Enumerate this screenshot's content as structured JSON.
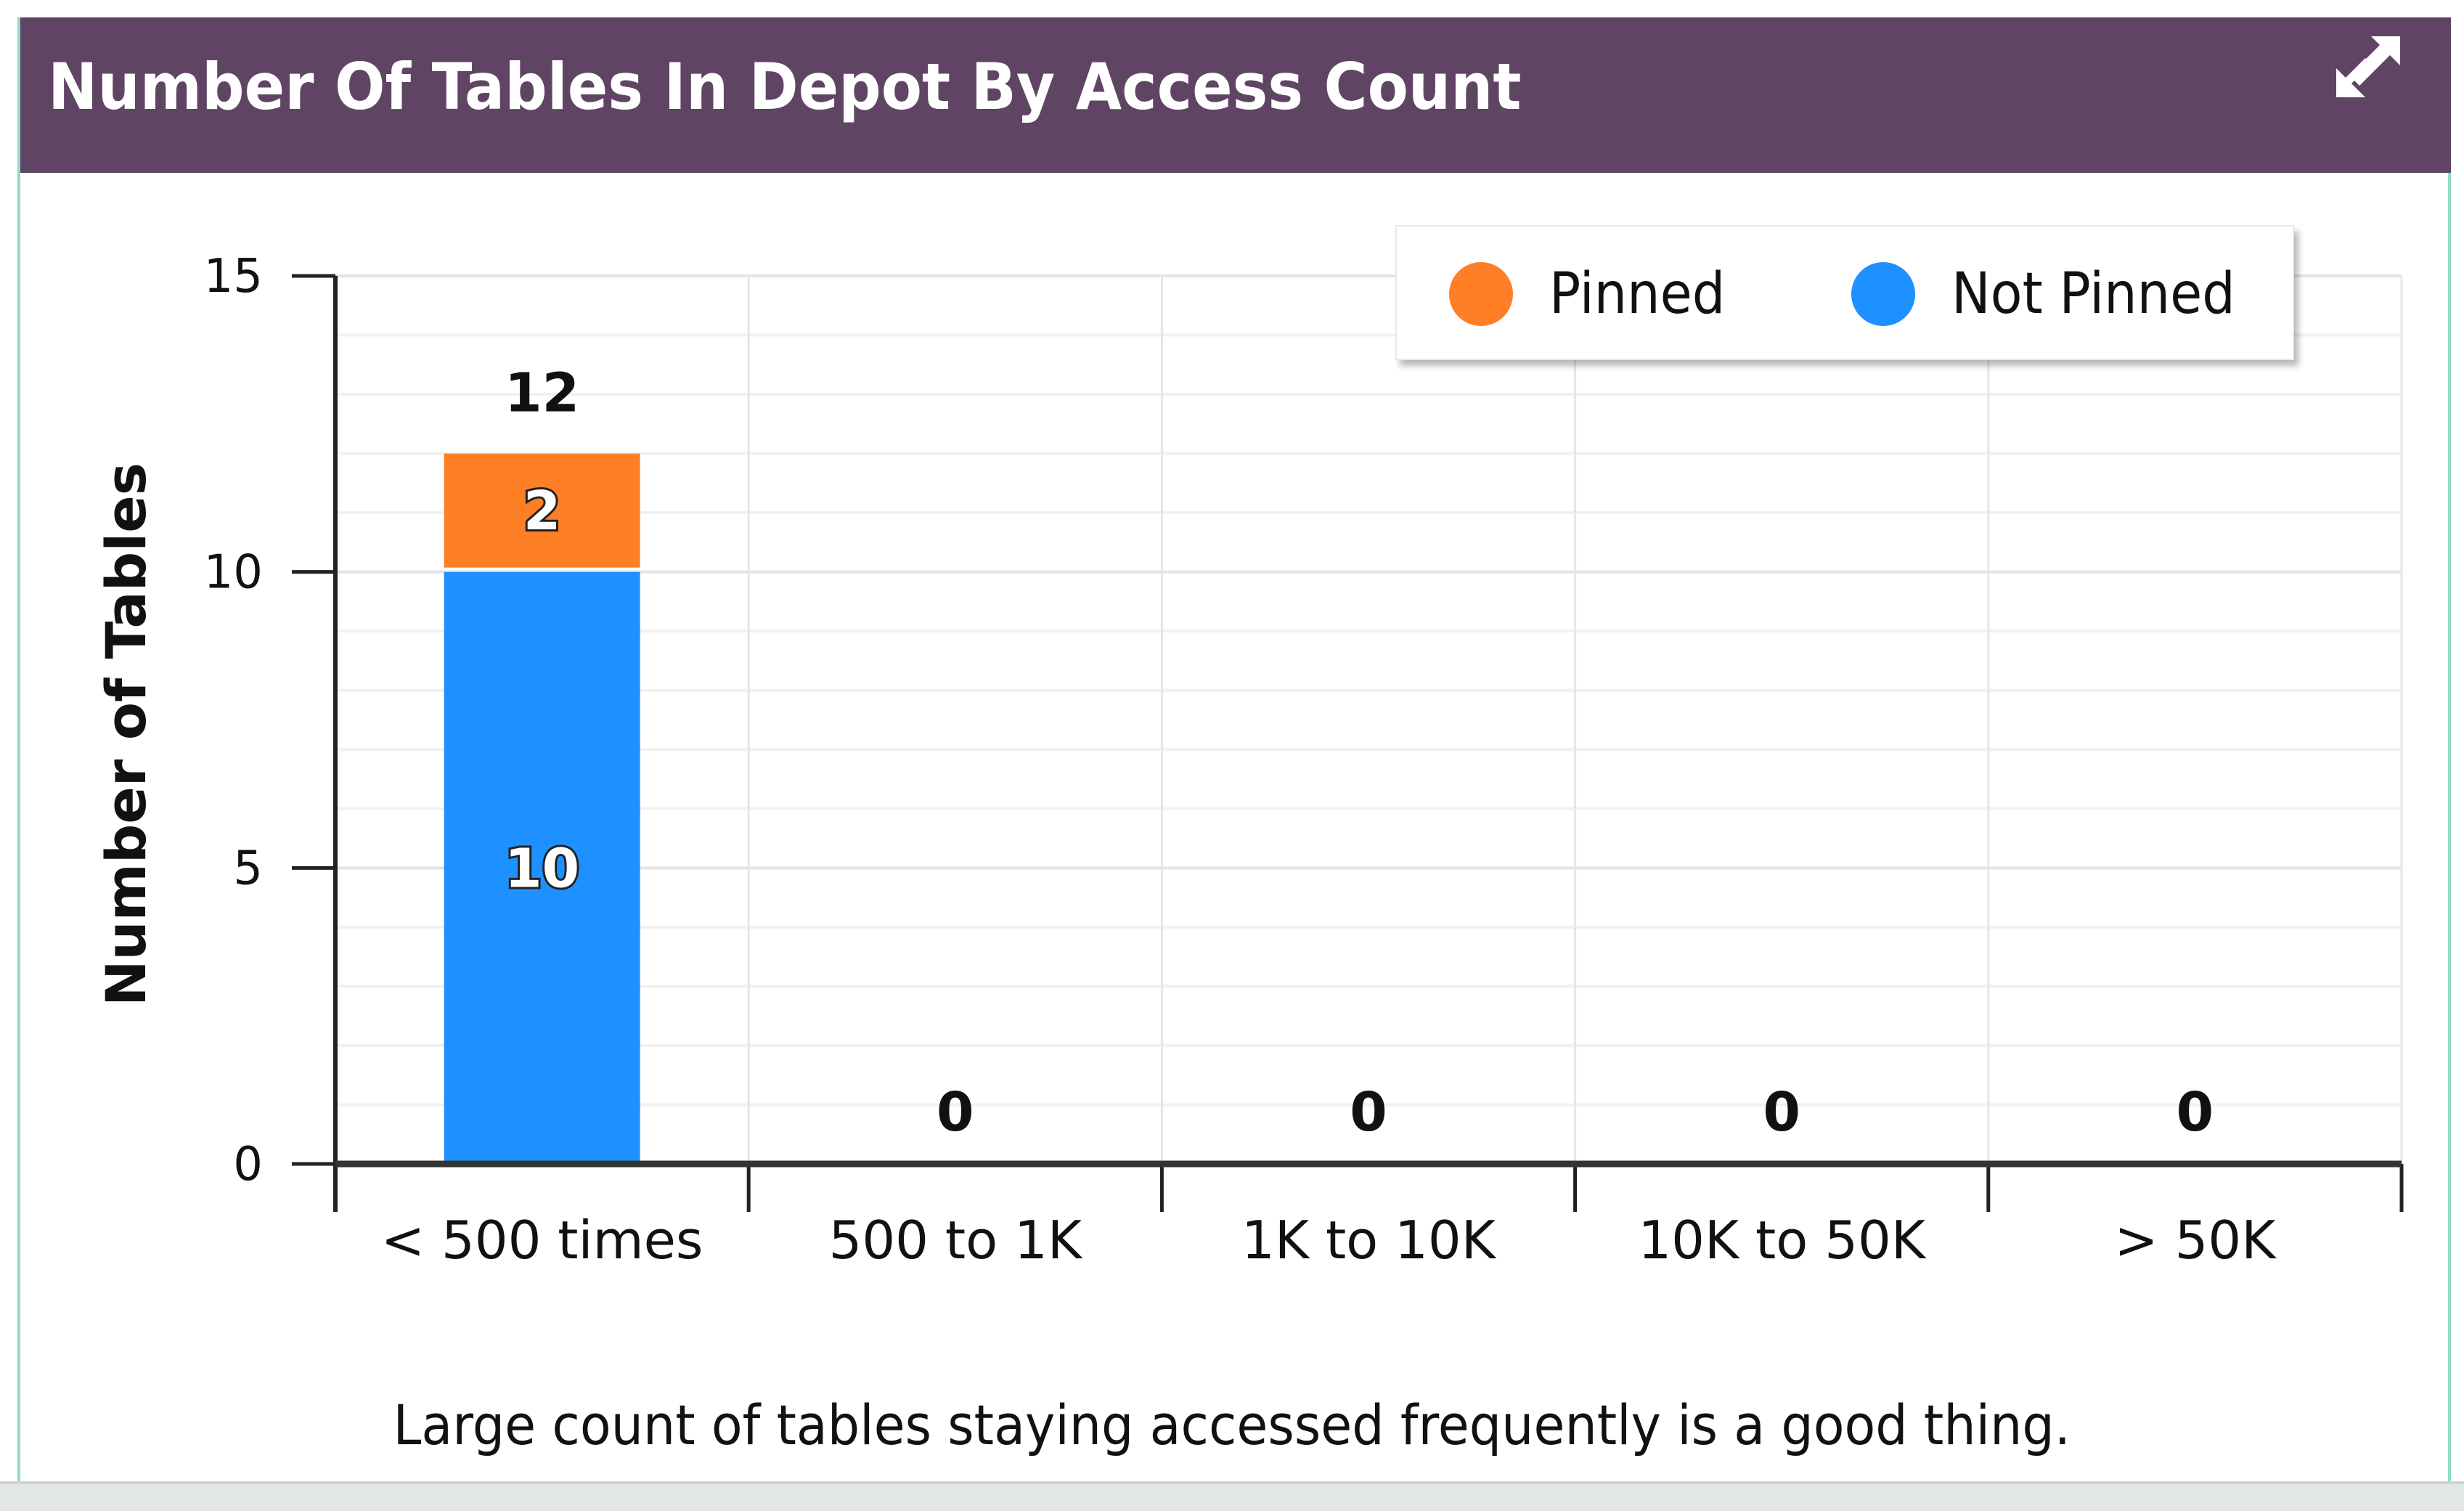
{
  "panel": {
    "title": "Number Of Tables In Depot By Access Count",
    "expand_icon": "expand-arrows-icon",
    "caption": "Large count of tables staying accessed frequently is a good thing.",
    "colors": {
      "header_bg": "#5f4563",
      "border": "#8fdcc9"
    }
  },
  "chart_data": {
    "type": "bar",
    "stacked": true,
    "title": "Number Of Tables In Depot By Access Count",
    "xlabel": "",
    "ylabel": "Number of Tables",
    "categories": [
      "< 500 times",
      "500 to 1K",
      "1K to 10K",
      "10K to 50K",
      "> 50K"
    ],
    "series": [
      {
        "name": "Not Pinned",
        "color": "#1e90ff",
        "values": [
          10,
          0,
          0,
          0,
          0
        ]
      },
      {
        "name": "Pinned",
        "color": "#ff7f27",
        "values": [
          2,
          0,
          0,
          0,
          0
        ]
      }
    ],
    "totals": [
      12,
      0,
      0,
      0,
      0
    ],
    "segment_labels": {
      "Not Pinned": [
        "10",
        "",
        "",
        "",
        ""
      ],
      "Pinned": [
        "2",
        "",
        "",
        "",
        ""
      ]
    },
    "total_labels": [
      "12",
      "0",
      "0",
      "0",
      "0"
    ],
    "ylim": [
      0,
      15
    ],
    "yticks": [
      0,
      5,
      10,
      15
    ],
    "ytick_labels": [
      "0",
      "5",
      "10",
      "15"
    ],
    "minor_grid_step": 1,
    "grid": true,
    "legend": {
      "position": "top-right",
      "entries": [
        {
          "name": "Pinned",
          "color": "#ff7f27"
        },
        {
          "name": "Not Pinned",
          "color": "#1e90ff"
        }
      ]
    }
  }
}
